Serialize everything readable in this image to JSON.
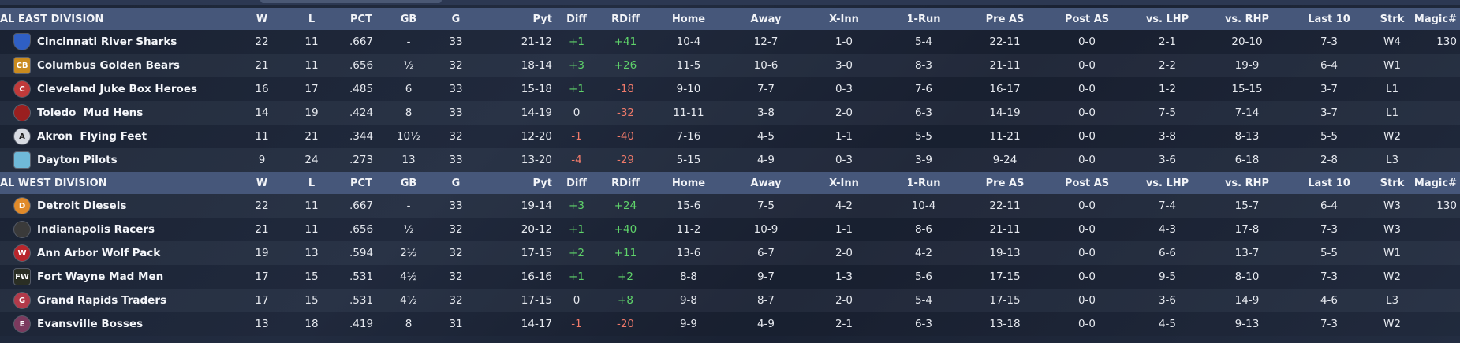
{
  "columns": [
    "W",
    "L",
    "PCT",
    "GB",
    "G",
    "Pyt",
    "Diff",
    "RDiff",
    "Home",
    "Away",
    "X-Inn",
    "1-Run",
    "Pre AS",
    "Post AS",
    "vs. LHP",
    "vs. RHP",
    "Last 10",
    "Strk",
    "Magic#"
  ],
  "divisions": [
    {
      "name": "AL EAST DIVISION",
      "teams": [
        {
          "name": "Cincinnati River Sharks",
          "logo": {
            "icon": "river-sharks-logo",
            "glyph": "",
            "color": "#2f5fc4",
            "shape": "shield"
          },
          "W": "22",
          "L": "11",
          "PCT": ".667",
          "GB": "-",
          "G": "33",
          "Pyt": "21-12",
          "Diff": "+1",
          "RDiff": "+41",
          "Home": "10-4",
          "Away": "12-7",
          "XInn": "1-0",
          "OneRun": "5-4",
          "PreAS": "22-11",
          "PostAS": "0-0",
          "vsLHP": "2-1",
          "vsRHP": "20-10",
          "Last10": "7-3",
          "Strk": "W4",
          "Magic": "130"
        },
        {
          "name": "Columbus Golden Bears",
          "logo": {
            "icon": "golden-bears-logo",
            "glyph": "CB",
            "color": "#c98a1e",
            "shape": "square"
          },
          "W": "21",
          "L": "11",
          "PCT": ".656",
          "GB": "½",
          "G": "32",
          "Pyt": "18-14",
          "Diff": "+3",
          "RDiff": "+26",
          "Home": "11-5",
          "Away": "10-6",
          "XInn": "3-0",
          "OneRun": "8-3",
          "PreAS": "21-11",
          "PostAS": "0-0",
          "vsLHP": "2-2",
          "vsRHP": "19-9",
          "Last10": "6-4",
          "Strk": "W1",
          "Magic": ""
        },
        {
          "name": "Cleveland Juke Box Heroes",
          "logo": {
            "icon": "juke-box-heroes-logo",
            "glyph": "C",
            "color": "#c03a3a",
            "shape": "circle"
          },
          "W": "16",
          "L": "17",
          "PCT": ".485",
          "GB": "6",
          "G": "33",
          "Pyt": "15-18",
          "Diff": "+1",
          "RDiff": "-18",
          "Home": "9-10",
          "Away": "7-7",
          "XInn": "0-3",
          "OneRun": "7-6",
          "PreAS": "16-17",
          "PostAS": "0-0",
          "vsLHP": "1-2",
          "vsRHP": "15-15",
          "Last10": "3-7",
          "Strk": "L1",
          "Magic": ""
        },
        {
          "name": "Toledo  Mud Hens",
          "logo": {
            "icon": "mud-hens-logo",
            "glyph": "",
            "color": "#9a1f1f",
            "shape": "circle"
          },
          "W": "14",
          "L": "19",
          "PCT": ".424",
          "GB": "8",
          "G": "33",
          "Pyt": "14-19",
          "Diff": "0",
          "RDiff": "-32",
          "Home": "11-11",
          "Away": "3-8",
          "XInn": "2-0",
          "OneRun": "6-3",
          "PreAS": "14-19",
          "PostAS": "0-0",
          "vsLHP": "7-5",
          "vsRHP": "7-14",
          "Last10": "3-7",
          "Strk": "L1",
          "Magic": ""
        },
        {
          "name": "Akron  Flying Feet",
          "logo": {
            "icon": "flying-feet-logo",
            "glyph": "A",
            "color": "#d7dbe2",
            "shape": "circle"
          },
          "W": "11",
          "L": "21",
          "PCT": ".344",
          "GB": "10½",
          "G": "32",
          "Pyt": "12-20",
          "Diff": "-1",
          "RDiff": "-40",
          "Home": "7-16",
          "Away": "4-5",
          "XInn": "1-1",
          "OneRun": "5-5",
          "PreAS": "11-21",
          "PostAS": "0-0",
          "vsLHP": "3-8",
          "vsRHP": "8-13",
          "Last10": "5-5",
          "Strk": "W2",
          "Magic": ""
        },
        {
          "name": "Dayton Pilots",
          "logo": {
            "icon": "dayton-pilots-logo",
            "glyph": "",
            "color": "#6fb9d8",
            "shape": "square"
          },
          "W": "9",
          "L": "24",
          "PCT": ".273",
          "GB": "13",
          "G": "33",
          "Pyt": "13-20",
          "Diff": "-4",
          "RDiff": "-29",
          "Home": "5-15",
          "Away": "4-9",
          "XInn": "0-3",
          "OneRun": "3-9",
          "PreAS": "9-24",
          "PostAS": "0-0",
          "vsLHP": "3-6",
          "vsRHP": "6-18",
          "Last10": "2-8",
          "Strk": "L3",
          "Magic": ""
        }
      ]
    },
    {
      "name": "AL WEST DIVISION",
      "teams": [
        {
          "name": "Detroit Diesels",
          "logo": {
            "icon": "diesels-logo",
            "glyph": "D",
            "color": "#e08a2a",
            "shape": "circle"
          },
          "W": "22",
          "L": "11",
          "PCT": ".667",
          "GB": "-",
          "G": "33",
          "Pyt": "19-14",
          "Diff": "+3",
          "RDiff": "+24",
          "Home": "15-6",
          "Away": "7-5",
          "XInn": "4-2",
          "OneRun": "10-4",
          "PreAS": "22-11",
          "PostAS": "0-0",
          "vsLHP": "7-4",
          "vsRHP": "15-7",
          "Last10": "6-4",
          "Strk": "W3",
          "Magic": "130"
        },
        {
          "name": "Indianapolis Racers",
          "logo": {
            "icon": "racers-logo",
            "glyph": "",
            "color": "#3a3a3a",
            "shape": "circle"
          },
          "W": "21",
          "L": "11",
          "PCT": ".656",
          "GB": "½",
          "G": "32",
          "Pyt": "20-12",
          "Diff": "+1",
          "RDiff": "+40",
          "Home": "11-2",
          "Away": "10-9",
          "XInn": "1-1",
          "OneRun": "8-6",
          "PreAS": "21-11",
          "PostAS": "0-0",
          "vsLHP": "4-3",
          "vsRHP": "17-8",
          "Last10": "7-3",
          "Strk": "W3",
          "Magic": ""
        },
        {
          "name": "Ann Arbor Wolf Pack",
          "logo": {
            "icon": "wolf-pack-logo",
            "glyph": "W",
            "color": "#b8262c",
            "shape": "circle"
          },
          "W": "19",
          "L": "13",
          "PCT": ".594",
          "GB": "2½",
          "G": "32",
          "Pyt": "17-15",
          "Diff": "+2",
          "RDiff": "+11",
          "Home": "13-6",
          "Away": "6-7",
          "XInn": "2-0",
          "OneRun": "4-2",
          "PreAS": "19-13",
          "PostAS": "0-0",
          "vsLHP": "6-6",
          "vsRHP": "13-7",
          "Last10": "5-5",
          "Strk": "W1",
          "Magic": ""
        },
        {
          "name": "Fort Wayne Mad Men",
          "logo": {
            "icon": "mad-men-logo",
            "glyph": "FW",
            "color": "#2a2e24",
            "shape": "square"
          },
          "W": "17",
          "L": "15",
          "PCT": ".531",
          "GB": "4½",
          "G": "32",
          "Pyt": "16-16",
          "Diff": "+1",
          "RDiff": "+2",
          "Home": "8-8",
          "Away": "9-7",
          "XInn": "1-3",
          "OneRun": "5-6",
          "PreAS": "17-15",
          "PostAS": "0-0",
          "vsLHP": "9-5",
          "vsRHP": "8-10",
          "Last10": "7-3",
          "Strk": "W2",
          "Magic": ""
        },
        {
          "name": "Grand Rapids Traders",
          "logo": {
            "icon": "traders-logo",
            "glyph": "G",
            "color": "#b23a4a",
            "shape": "circle"
          },
          "W": "17",
          "L": "15",
          "PCT": ".531",
          "GB": "4½",
          "G": "32",
          "Pyt": "17-15",
          "Diff": "0",
          "RDiff": "+8",
          "Home": "9-8",
          "Away": "8-7",
          "XInn": "2-0",
          "OneRun": "5-4",
          "PreAS": "17-15",
          "PostAS": "0-0",
          "vsLHP": "3-6",
          "vsRHP": "14-9",
          "Last10": "4-6",
          "Strk": "L3",
          "Magic": ""
        },
        {
          "name": "Evansville Bosses",
          "logo": {
            "icon": "bosses-logo",
            "glyph": "E",
            "color": "#7b3a5e",
            "shape": "circle"
          },
          "W": "13",
          "L": "18",
          "PCT": ".419",
          "GB": "8",
          "G": "31",
          "Pyt": "14-17",
          "Diff": "-1",
          "RDiff": "-20",
          "Home": "9-9",
          "Away": "4-9",
          "XInn": "2-1",
          "OneRun": "6-3",
          "PreAS": "13-18",
          "PostAS": "0-0",
          "vsLHP": "4-5",
          "vsRHP": "9-13",
          "Last10": "7-3",
          "Strk": "W2",
          "Magic": ""
        }
      ]
    }
  ]
}
